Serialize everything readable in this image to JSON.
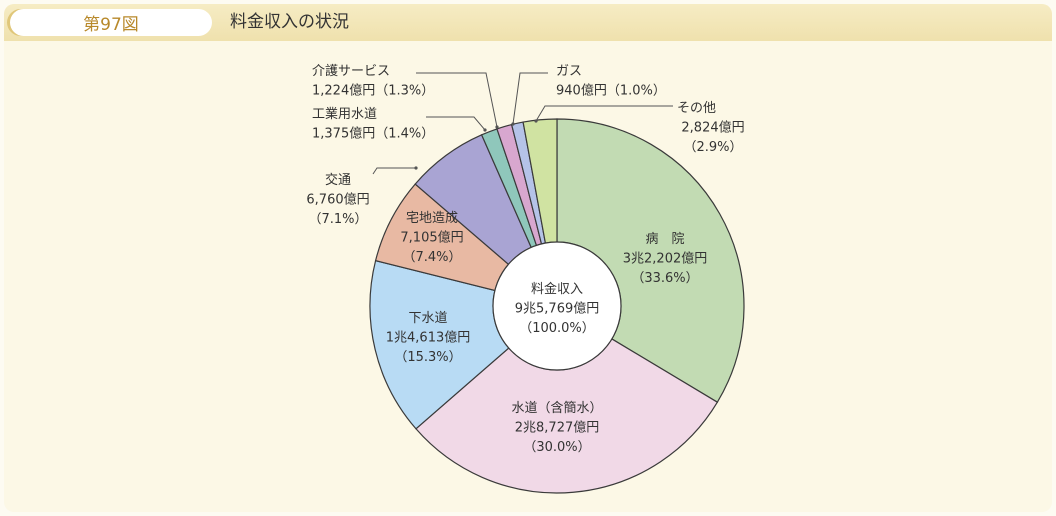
{
  "figure": {
    "number": "第97図",
    "title": "料金収入の状況"
  },
  "chart_data": {
    "type": "pie",
    "center": {
      "lines": [
        "料金収入",
        "9兆5,769億円",
        "（100.0%）"
      ]
    },
    "slices": [
      {
        "label": "病　院",
        "amount": "3兆2,202億円",
        "percent": "（33.6%）",
        "value": 33.6,
        "color": "#c2dbb3"
      },
      {
        "label": "水道（含簡水）",
        "amount": "2兆8,727億円",
        "percent": "（30.0%）",
        "value": 30.0,
        "color": "#f1d9e7"
      },
      {
        "label": "下水道",
        "amount": "1兆4,613億円",
        "percent": "（15.3%）",
        "value": 15.3,
        "color": "#b8dbf4"
      },
      {
        "label": "宅地造成",
        "amount": "7,105億円",
        "percent": "（7.4%）",
        "value": 7.4,
        "color": "#e8b9a3"
      },
      {
        "label": "交通",
        "amount": "6,760億円",
        "percent": "（7.1%）",
        "value": 7.1,
        "color": "#a9a4d3"
      },
      {
        "label": "工業用水道",
        "amount": "1,375億円",
        "percent": "（1.4%）",
        "value": 1.4,
        "color": "#8fc7bb"
      },
      {
        "label": "介護サービス",
        "amount": "1,224億円",
        "percent": "（1.3%）",
        "value": 1.3,
        "color": "#d8a7cf"
      },
      {
        "label": "ガス",
        "amount": "940億円",
        "percent": "（1.0%）",
        "value": 1.0,
        "color": "#b5c3e8"
      },
      {
        "label": "その他",
        "amount": "2,824億円",
        "percent": "（2.9%）",
        "value": 2.9,
        "color": "#d0e3a2"
      }
    ]
  }
}
